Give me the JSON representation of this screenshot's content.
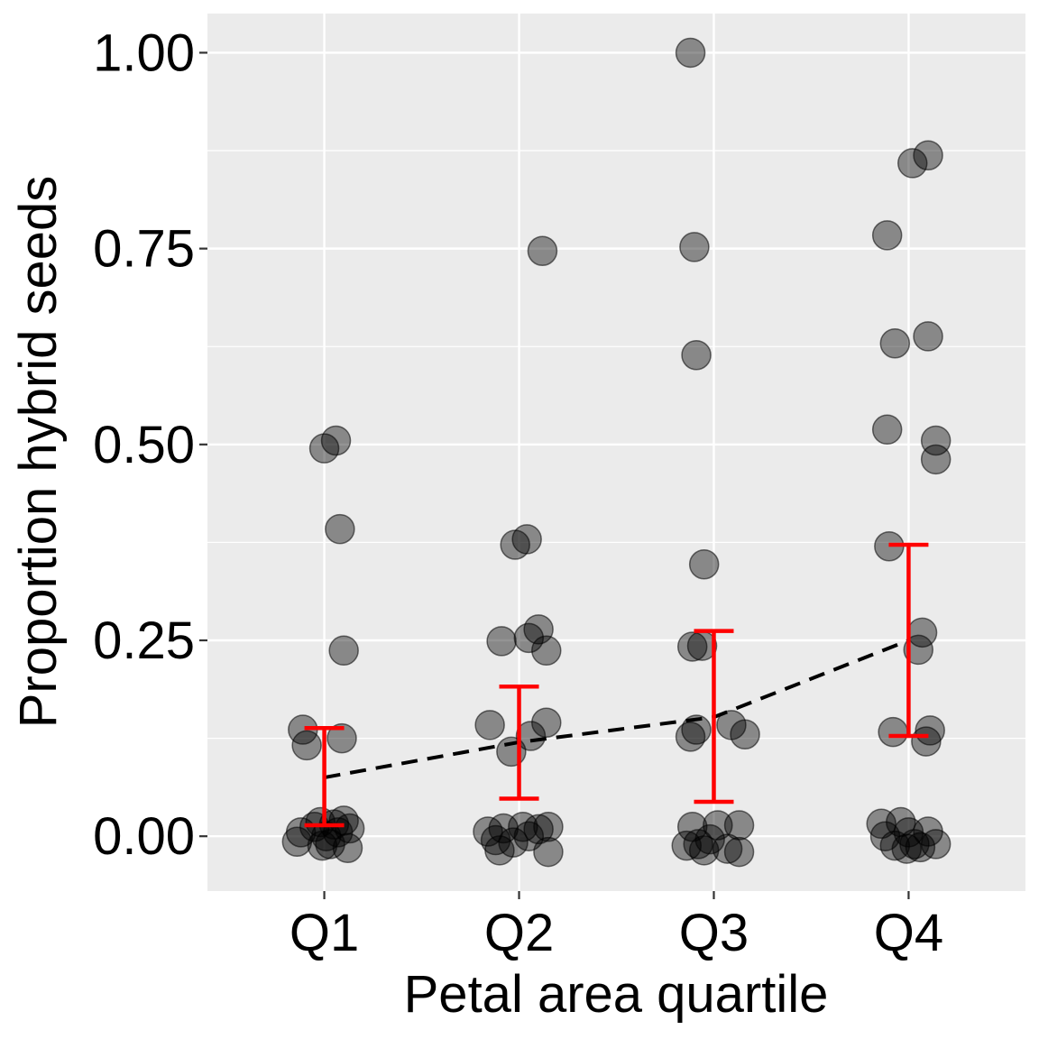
{
  "chart_data": {
    "type": "scatter",
    "title": "",
    "xlabel": "Petal area quartile",
    "ylabel": "Proportion hybrid seeds",
    "categories": [
      "Q1",
      "Q2",
      "Q3",
      "Q4"
    ],
    "ylim": [
      -0.07,
      1.05
    ],
    "yticks": [
      0.0,
      0.25,
      0.5,
      0.75,
      1.0
    ],
    "ytick_labels": [
      "0.00",
      "0.25",
      "0.50",
      "0.75",
      "1.00"
    ],
    "grid": true,
    "background": "#EBEBEB",
    "colors": {
      "points": "#000000",
      "error_bars": "#FF0000",
      "trend_line": "#000000"
    },
    "points": [
      {
        "category": "Q1",
        "jitter": 0.0,
        "y": 0.495
      },
      {
        "category": "Q1",
        "jitter": 0.06,
        "y": 0.505
      },
      {
        "category": "Q1",
        "jitter": 0.08,
        "y": 0.392
      },
      {
        "category": "Q1",
        "jitter": 0.1,
        "y": 0.237
      },
      {
        "category": "Q1",
        "jitter": -0.11,
        "y": 0.136
      },
      {
        "category": "Q1",
        "jitter": -0.09,
        "y": 0.116
      },
      {
        "category": "Q1",
        "jitter": 0.09,
        "y": 0.125
      },
      {
        "category": "Q1",
        "jitter": -0.12,
        "y": 0.005
      },
      {
        "category": "Q1",
        "jitter": -0.14,
        "y": -0.007
      },
      {
        "category": "Q1",
        "jitter": -0.05,
        "y": 0.012
      },
      {
        "category": "Q1",
        "jitter": -0.02,
        "y": 0.018
      },
      {
        "category": "Q1",
        "jitter": 0.01,
        "y": 0.0
      },
      {
        "category": "Q1",
        "jitter": 0.03,
        "y": -0.01
      },
      {
        "category": "Q1",
        "jitter": 0.05,
        "y": 0.015
      },
      {
        "category": "Q1",
        "jitter": 0.07,
        "y": 0.005
      },
      {
        "category": "Q1",
        "jitter": 0.1,
        "y": 0.02
      },
      {
        "category": "Q1",
        "jitter": 0.13,
        "y": 0.01
      },
      {
        "category": "Q1",
        "jitter": 0.12,
        "y": -0.015
      },
      {
        "category": "Q1",
        "jitter": -0.01,
        "y": -0.012
      },
      {
        "category": "Q2",
        "jitter": -0.02,
        "y": 0.372
      },
      {
        "category": "Q2",
        "jitter": 0.04,
        "y": 0.379
      },
      {
        "category": "Q2",
        "jitter": 0.12,
        "y": 0.747
      },
      {
        "category": "Q2",
        "jitter": -0.09,
        "y": 0.249
      },
      {
        "category": "Q2",
        "jitter": 0.05,
        "y": 0.253
      },
      {
        "category": "Q2",
        "jitter": 0.1,
        "y": 0.264
      },
      {
        "category": "Q2",
        "jitter": 0.14,
        "y": 0.237
      },
      {
        "category": "Q2",
        "jitter": -0.15,
        "y": 0.142
      },
      {
        "category": "Q2",
        "jitter": -0.04,
        "y": 0.108
      },
      {
        "category": "Q2",
        "jitter": 0.06,
        "y": 0.128
      },
      {
        "category": "Q2",
        "jitter": 0.14,
        "y": 0.145
      },
      {
        "category": "Q2",
        "jitter": -0.16,
        "y": 0.006
      },
      {
        "category": "Q2",
        "jitter": -0.12,
        "y": -0.005
      },
      {
        "category": "Q2",
        "jitter": -0.1,
        "y": -0.018
      },
      {
        "category": "Q2",
        "jitter": -0.08,
        "y": 0.01
      },
      {
        "category": "Q2",
        "jitter": -0.03,
        "y": -0.008
      },
      {
        "category": "Q2",
        "jitter": 0.02,
        "y": 0.012
      },
      {
        "category": "Q2",
        "jitter": 0.05,
        "y": 0.0
      },
      {
        "category": "Q2",
        "jitter": 0.1,
        "y": 0.009
      },
      {
        "category": "Q2",
        "jitter": 0.15,
        "y": 0.012
      },
      {
        "category": "Q2",
        "jitter": 0.15,
        "y": -0.02
      },
      {
        "category": "Q3",
        "jitter": -0.12,
        "y": 1.0
      },
      {
        "category": "Q3",
        "jitter": -0.1,
        "y": 0.752
      },
      {
        "category": "Q3",
        "jitter": -0.09,
        "y": 0.614
      },
      {
        "category": "Q3",
        "jitter": -0.05,
        "y": 0.347
      },
      {
        "category": "Q3",
        "jitter": -0.06,
        "y": 0.243
      },
      {
        "category": "Q3",
        "jitter": -0.11,
        "y": 0.242
      },
      {
        "category": "Q3",
        "jitter": -0.12,
        "y": 0.127
      },
      {
        "category": "Q3",
        "jitter": -0.09,
        "y": 0.136
      },
      {
        "category": "Q3",
        "jitter": 0.09,
        "y": 0.142
      },
      {
        "category": "Q3",
        "jitter": 0.16,
        "y": 0.13
      },
      {
        "category": "Q3",
        "jitter": -0.14,
        "y": -0.012
      },
      {
        "category": "Q3",
        "jitter": -0.11,
        "y": 0.012
      },
      {
        "category": "Q3",
        "jitter": -0.08,
        "y": -0.01
      },
      {
        "category": "Q3",
        "jitter": -0.05,
        "y": -0.018
      },
      {
        "category": "Q3",
        "jitter": -0.02,
        "y": -0.004
      },
      {
        "category": "Q3",
        "jitter": 0.02,
        "y": 0.014
      },
      {
        "category": "Q3",
        "jitter": 0.07,
        "y": -0.016
      },
      {
        "category": "Q3",
        "jitter": 0.13,
        "y": 0.014
      },
      {
        "category": "Q3",
        "jitter": 0.13,
        "y": -0.02
      },
      {
        "category": "Q4",
        "jitter": 0.02,
        "y": 0.859
      },
      {
        "category": "Q4",
        "jitter": 0.1,
        "y": 0.869
      },
      {
        "category": "Q4",
        "jitter": -0.11,
        "y": 0.767
      },
      {
        "category": "Q4",
        "jitter": -0.07,
        "y": 0.629
      },
      {
        "category": "Q4",
        "jitter": 0.1,
        "y": 0.638
      },
      {
        "category": "Q4",
        "jitter": -0.11,
        "y": 0.519
      },
      {
        "category": "Q4",
        "jitter": 0.14,
        "y": 0.505
      },
      {
        "category": "Q4",
        "jitter": 0.14,
        "y": 0.481
      },
      {
        "category": "Q4",
        "jitter": -0.1,
        "y": 0.37
      },
      {
        "category": "Q4",
        "jitter": 0.07,
        "y": 0.26
      },
      {
        "category": "Q4",
        "jitter": 0.05,
        "y": 0.238
      },
      {
        "category": "Q4",
        "jitter": -0.08,
        "y": 0.133
      },
      {
        "category": "Q4",
        "jitter": 0.11,
        "y": 0.135
      },
      {
        "category": "Q4",
        "jitter": 0.09,
        "y": 0.121
      },
      {
        "category": "Q4",
        "jitter": -0.14,
        "y": 0.016
      },
      {
        "category": "Q4",
        "jitter": -0.12,
        "y": 0.0
      },
      {
        "category": "Q4",
        "jitter": -0.07,
        "y": -0.012
      },
      {
        "category": "Q4",
        "jitter": -0.04,
        "y": 0.018
      },
      {
        "category": "Q4",
        "jitter": -0.01,
        "y": -0.016
      },
      {
        "category": "Q4",
        "jitter": 0.0,
        "y": 0.005
      },
      {
        "category": "Q4",
        "jitter": 0.03,
        "y": -0.01
      },
      {
        "category": "Q4",
        "jitter": 0.06,
        "y": -0.014
      },
      {
        "category": "Q4",
        "jitter": 0.1,
        "y": 0.006
      },
      {
        "category": "Q4",
        "jitter": 0.14,
        "y": -0.01
      }
    ],
    "summary": [
      {
        "category": "Q1",
        "mean": 0.075,
        "lower": 0.014,
        "upper": 0.138
      },
      {
        "category": "Q2",
        "mean": 0.12,
        "lower": 0.048,
        "upper": 0.191
      },
      {
        "category": "Q3",
        "mean": 0.152,
        "lower": 0.044,
        "upper": 0.262
      },
      {
        "category": "Q4",
        "mean": 0.25,
        "lower": 0.128,
        "upper": 0.372
      }
    ]
  }
}
